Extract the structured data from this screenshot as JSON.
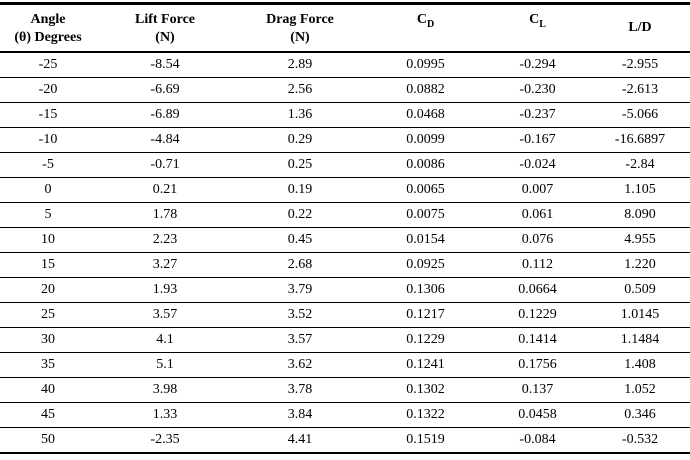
{
  "table": {
    "header": {
      "angle_line1": "Angle",
      "angle_line2": "(θ) Degrees",
      "lift_line1": "Lift Force",
      "lift_line2": "(N)",
      "drag_line1": "Drag Force",
      "drag_line2": "(N)",
      "cd_base": "C",
      "cd_sub": "D",
      "cl_base": "C",
      "cl_sub": "L",
      "ld": "L/D"
    },
    "rows": [
      [
        "-25",
        "-8.54",
        "2.89",
        "0.0995",
        "-0.294",
        "-2.955"
      ],
      [
        "-20",
        "-6.69",
        "2.56",
        "0.0882",
        "-0.230",
        "-2.613"
      ],
      [
        "-15",
        "-6.89",
        "1.36",
        "0.0468",
        "-0.237",
        "-5.066"
      ],
      [
        "-10",
        "-4.84",
        "0.29",
        "0.0099",
        "-0.167",
        "-16.6897"
      ],
      [
        "-5",
        "-0.71",
        "0.25",
        "0.0086",
        "-0.024",
        "-2.84"
      ],
      [
        "0",
        "0.21",
        "0.19",
        "0.0065",
        "0.007",
        "1.105"
      ],
      [
        "5",
        "1.78",
        "0.22",
        "0.0075",
        "0.061",
        "8.090"
      ],
      [
        "10",
        "2.23",
        "0.45",
        "0.0154",
        "0.076",
        "4.955"
      ],
      [
        "15",
        "3.27",
        "2.68",
        "0.0925",
        "0.112",
        "1.220"
      ],
      [
        "20",
        "1.93",
        "3.79",
        "0.1306",
        "0.0664",
        "0.509"
      ],
      [
        "25",
        "3.57",
        "3.52",
        "0.1217",
        "0.1229",
        "1.0145"
      ],
      [
        "30",
        "4.1",
        "3.57",
        "0.1229",
        "0.1414",
        "1.1484"
      ],
      [
        "35",
        "5.1",
        "3.62",
        "0.1241",
        "0.1756",
        "1.408"
      ],
      [
        "40",
        "3.98",
        "3.78",
        "0.1302",
        "0.137",
        "1.052"
      ],
      [
        "45",
        "1.33",
        "3.84",
        "0.1322",
        "0.0458",
        "0.346"
      ],
      [
        "50",
        "-2.35",
        "4.41",
        "0.1519",
        "-0.084",
        "-0.532"
      ]
    ]
  }
}
